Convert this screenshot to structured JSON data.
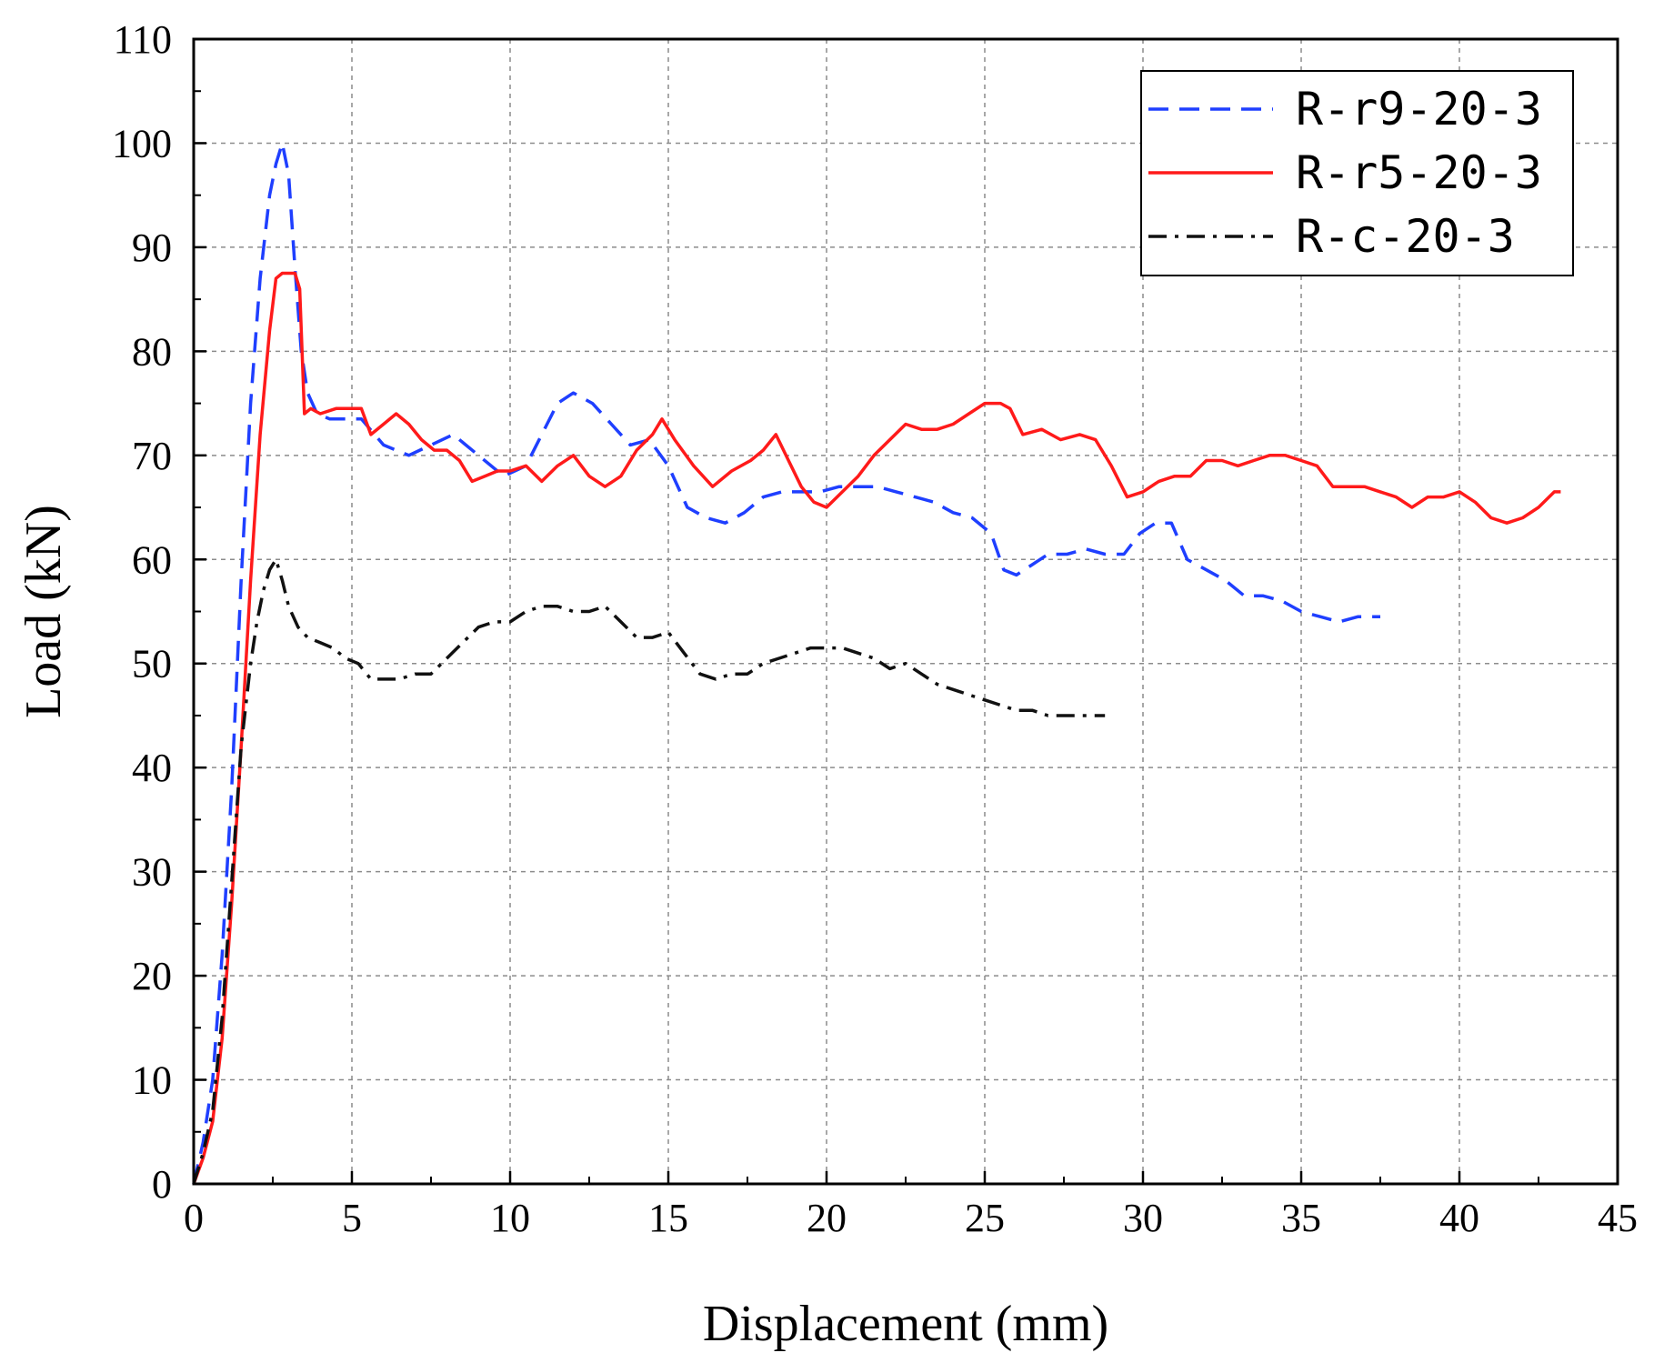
{
  "chart_data": {
    "type": "line",
    "xlabel": "Displacement (mm)",
    "ylabel": "Load (kN)",
    "xlim": [
      0,
      45
    ],
    "ylim": [
      0,
      110
    ],
    "xticks": [
      0,
      5,
      10,
      15,
      20,
      25,
      30,
      35,
      40,
      45
    ],
    "yticks": [
      0,
      10,
      20,
      30,
      40,
      50,
      60,
      70,
      80,
      90,
      100,
      110
    ],
    "grid": true,
    "legend_position": "top-right",
    "series": [
      {
        "name": "R-r9-20-3",
        "color": "#1f3fff",
        "style": "dashed",
        "x": [
          0,
          0.3,
          0.6,
          0.9,
          1.2,
          1.5,
          1.8,
          2.1,
          2.4,
          2.6,
          2.8,
          3.0,
          3.2,
          3.4,
          3.6,
          3.9,
          4.3,
          4.8,
          5.3,
          6.0,
          6.8,
          7.5,
          8.2,
          9.0,
          9.8,
          10.5,
          11.0,
          11.5,
          12.0,
          12.6,
          13.2,
          13.8,
          14.4,
          15.0,
          15.6,
          16.2,
          16.8,
          17.4,
          18.0,
          18.6,
          19.2,
          19.8,
          20.4,
          21.0,
          21.6,
          22.2,
          22.8,
          23.4,
          24.0,
          24.6,
          25.2,
          25.6,
          26.0,
          26.5,
          27.0,
          27.6,
          28.2,
          28.8,
          29.4,
          29.9,
          30.4,
          30.9,
          31.4,
          32.0,
          32.6,
          33.2,
          33.8,
          34.4,
          35.0,
          35.6,
          36.2,
          36.8,
          37.5
        ],
        "y": [
          0,
          4,
          10,
          22,
          38,
          58,
          75,
          87,
          95,
          98,
          100,
          97,
          88,
          80,
          76,
          74,
          73.5,
          73.5,
          73.5,
          71,
          70,
          71,
          72,
          70,
          68,
          69,
          72,
          75,
          76,
          75,
          73,
          71,
          71.5,
          69,
          65,
          64,
          63.5,
          64.5,
          66,
          66.5,
          66.5,
          66.5,
          67,
          67,
          67,
          66.5,
          66,
          65.5,
          64.5,
          64,
          62.5,
          59,
          58.5,
          59.5,
          60.5,
          60.5,
          61,
          60.5,
          60.5,
          62.5,
          63.5,
          63.5,
          60,
          59,
          58,
          56.5,
          56.5,
          56,
          55,
          54.5,
          54,
          54.5,
          54.5
        ]
      },
      {
        "name": "R-r5-20-3",
        "color": "#ff1a1a",
        "style": "solid",
        "x": [
          0,
          0.3,
          0.6,
          0.9,
          1.2,
          1.5,
          1.8,
          2.1,
          2.4,
          2.6,
          2.8,
          3.0,
          3.2,
          3.35,
          3.5,
          3.7,
          4.0,
          4.5,
          5.0,
          5.3,
          5.6,
          6.0,
          6.4,
          6.8,
          7.2,
          7.6,
          8.0,
          8.4,
          8.8,
          9.2,
          9.6,
          10.0,
          10.5,
          11.0,
          11.5,
          12.0,
          12.5,
          13.0,
          13.5,
          14.0,
          14.5,
          14.8,
          15.2,
          15.8,
          16.4,
          17.0,
          17.6,
          18.0,
          18.4,
          18.8,
          19.2,
          19.6,
          20.0,
          20.5,
          21.0,
          21.5,
          22.0,
          22.5,
          23.0,
          23.5,
          24.0,
          24.5,
          25.0,
          25.5,
          25.8,
          26.2,
          26.8,
          27.4,
          28.0,
          28.5,
          29.0,
          29.5,
          30.0,
          30.5,
          31.0,
          31.5,
          32.0,
          32.5,
          33.0,
          33.5,
          34.0,
          34.5,
          35.0,
          35.5,
          36.0,
          36.5,
          37.0,
          37.5,
          38.0,
          38.5,
          39.0,
          39.5,
          40.0,
          40.5,
          41.0,
          41.5,
          42.0,
          42.5,
          43.0,
          43.2
        ],
        "y": [
          0,
          2.5,
          6,
          14,
          27,
          42,
          58,
          72,
          82,
          87,
          87.5,
          87.5,
          87.5,
          86,
          74,
          74.5,
          74,
          74.5,
          74.5,
          74.5,
          72,
          73,
          74,
          73,
          71.5,
          70.5,
          70.5,
          69.5,
          67.5,
          68,
          68.5,
          68.5,
          69,
          67.5,
          69,
          70,
          68,
          67,
          68,
          70.5,
          72,
          73.5,
          71.5,
          69,
          67,
          68.5,
          69.5,
          70.5,
          72,
          69.5,
          67,
          65.5,
          65,
          66.5,
          68,
          70,
          71.5,
          73,
          72.5,
          72.5,
          73,
          74,
          75,
          75,
          74.5,
          72,
          72.5,
          71.5,
          72,
          71.5,
          69,
          66,
          66.5,
          67.5,
          68,
          68,
          69.5,
          69.5,
          69,
          69.5,
          70,
          70,
          69.5,
          69,
          67,
          67,
          67,
          66.5,
          66,
          65,
          66,
          66,
          66.5,
          65.5,
          64,
          63.5,
          64,
          65,
          66.5,
          66.5
        ]
      },
      {
        "name": "R-c-20-3",
        "color": "#111111",
        "style": "dashdot",
        "x": [
          0,
          0.3,
          0.6,
          0.9,
          1.2,
          1.5,
          1.8,
          2.0,
          2.2,
          2.4,
          2.6,
          2.8,
          3.0,
          3.3,
          3.6,
          4.0,
          4.4,
          4.8,
          5.2,
          5.6,
          6.0,
          6.5,
          7.0,
          7.5,
          8.0,
          8.5,
          9.0,
          9.5,
          10.0,
          10.5,
          11.0,
          11.5,
          12.0,
          12.5,
          13.0,
          13.5,
          14.0,
          14.5,
          15.0,
          15.5,
          16.0,
          16.5,
          17.0,
          17.5,
          18.0,
          18.5,
          19.0,
          19.5,
          20.0,
          20.5,
          21.0,
          21.5,
          22.0,
          22.5,
          23.0,
          23.5,
          24.0,
          24.5,
          25.0,
          25.5,
          26.0,
          26.5,
          27.0,
          27.5,
          28.0,
          28.5,
          28.8
        ],
        "y": [
          0,
          3,
          7,
          16,
          29,
          42,
          50,
          54,
          57,
          59,
          60,
          58,
          55.5,
          53.5,
          52.5,
          52,
          51.5,
          50.5,
          50,
          48.5,
          48.5,
          48.5,
          49,
          49,
          50.5,
          52,
          53.5,
          54,
          54,
          55,
          55.5,
          55.5,
          55,
          55,
          55.5,
          54,
          52.5,
          52.5,
          53,
          51,
          49,
          48.5,
          49,
          49,
          50,
          50.5,
          51,
          51.5,
          51.5,
          51.5,
          51,
          50.5,
          49.5,
          50,
          49,
          48,
          47.5,
          47,
          46.5,
          46,
          45.5,
          45.5,
          45,
          45,
          45,
          45,
          45
        ]
      }
    ]
  }
}
